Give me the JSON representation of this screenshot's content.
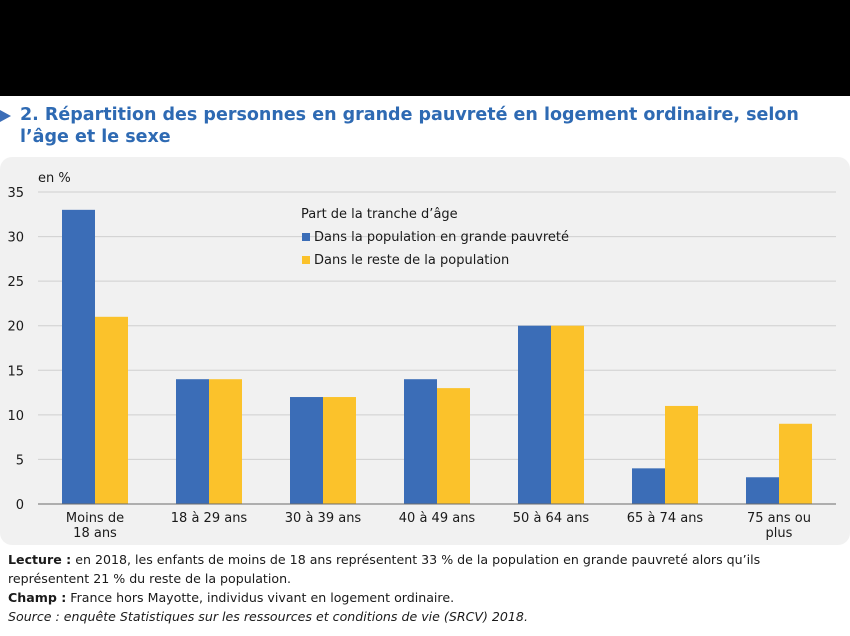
{
  "title": "2. Répartition des personnes en grande pauvreté en logement ordinaire, selon l’âge et le sexe",
  "colors": {
    "series1": "#3b6db7",
    "series2": "#fbc22b",
    "title": "#2e6ab3"
  },
  "chart_data": {
    "type": "bar",
    "ylabel": "en %",
    "ylim": [
      0,
      35
    ],
    "yticks": [
      0,
      5,
      10,
      15,
      20,
      25,
      30,
      35
    ],
    "grid": true,
    "legend_position": "top-center",
    "legend_title": "Part de la tranche d’âge",
    "categories": [
      [
        "Moins de",
        "18 ans"
      ],
      [
        "18 à 29 ans"
      ],
      [
        "30 à 39 ans"
      ],
      [
        "40 à 49 ans"
      ],
      [
        "50 à 64 ans"
      ],
      [
        "65 à 74 ans"
      ],
      [
        "75 ans ou",
        "plus"
      ]
    ],
    "series": [
      {
        "name": "Dans la population en grande pauvreté",
        "color": "#3b6db7",
        "values": [
          33,
          14,
          12,
          14,
          20,
          4,
          3
        ]
      },
      {
        "name": "Dans le reste de la population",
        "color": "#fbc22b",
        "values": [
          21,
          14,
          12,
          13,
          20,
          11,
          9
        ]
      }
    ]
  },
  "notes": {
    "lecture_label": "Lecture :",
    "lecture_text": " en 2018, les enfants de moins de 18 ans représentent 33 % de la population en grande pauvreté alors qu’ils représentent 21 % du reste de la population.",
    "champ_label": "Champ :",
    "champ_text": " France hors Mayotte, individus vivant en logement ordinaire.",
    "source": "Source : enquête Statistiques sur les ressources et conditions de vie (SRCV) 2018."
  }
}
